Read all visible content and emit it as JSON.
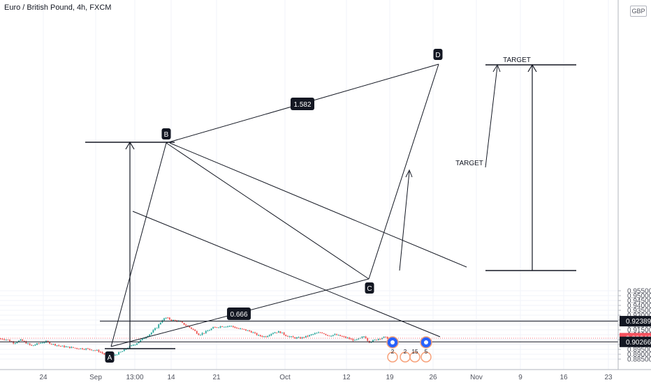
{
  "chart_data": {
    "type": "candlestick",
    "title": "Euro / British Pound, 4h, FXCM",
    "currency": "GBP",
    "ylim": [
      0.885,
      0.955
    ],
    "y_ticks": [
      "0.88500",
      "0.89000",
      "0.89500",
      "0.90000",
      "0.90500",
      "0.91000",
      "0.91500",
      "0.92000",
      "0.92500",
      "0.93000",
      "0.93500",
      "0.94000",
      "0.94500",
      "0.95000",
      "0.95500"
    ],
    "x_ticks": [
      "24",
      "Sep",
      "13:00",
      "14",
      "21",
      "Oct",
      "12",
      "19",
      "26",
      "Nov",
      "9",
      "16",
      "23"
    ],
    "price_labels": {
      "current": "0.90646",
      "target_level": "0.92389",
      "support_level": "0.90266"
    },
    "pattern_points": {
      "A": "A",
      "B": "B",
      "C": "C",
      "D": "D"
    },
    "ratios": {
      "bc": "0.666",
      "bd": "1.582"
    },
    "annotations": {
      "target_upper": "TARGET",
      "target_lower": "TARGET"
    },
    "events": [
      "2",
      "2",
      "15",
      "5"
    ],
    "colors": {
      "up": "#26a69a",
      "down": "#ef5350",
      "line": "#131722",
      "grid": "#f0f3fa",
      "current": "#f7525f"
    }
  }
}
